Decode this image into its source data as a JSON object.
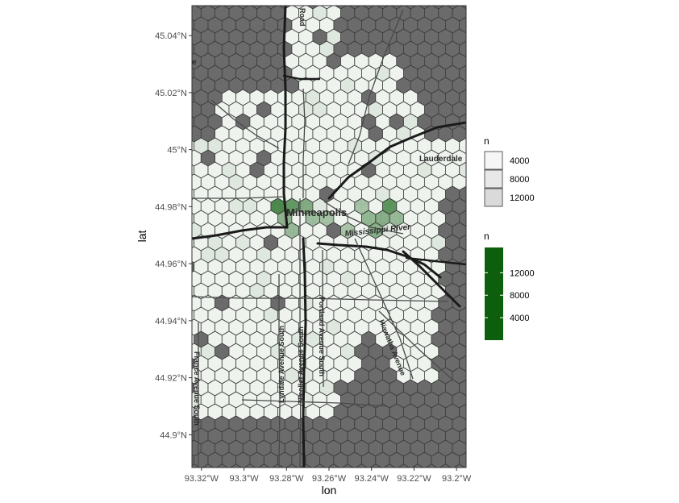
{
  "chart_data": {
    "type": "hexbin-map",
    "xlabel": "lon",
    "ylabel": "lat",
    "x_ticks": [
      "93.32°W",
      "93.3°W",
      "93.28°W",
      "93.26°W",
      "93.24°W",
      "93.22°W",
      "93.2°W"
    ],
    "x_tick_values": [
      -93.32,
      -93.3,
      -93.28,
      -93.26,
      -93.24,
      -93.22,
      -93.2
    ],
    "y_ticks": [
      "44.9°N",
      "44.92°N",
      "44.94°N",
      "44.96°N",
      "44.98°N",
      "45°N",
      "45.02°N",
      "45.04°N"
    ],
    "y_tick_values": [
      44.9,
      44.92,
      44.94,
      44.96,
      44.98,
      45.0,
      45.02,
      45.04
    ],
    "xlim": [
      -93.3245,
      -93.1955
    ],
    "ylim": [
      44.8885,
      45.0505
    ],
    "map_labels": {
      "city": "Minneapolis",
      "river": "Mississippi River",
      "suburb": "Lauderdale",
      "fragment_e": "e",
      "road_top": "Road",
      "road_france": "France Avenue South",
      "road_lyndale": "Lyndale Avenue South",
      "road_nicollet": "Nicollet Avenue South",
      "road_portland": "Portland Avenue South",
      "road_hiawatha": "Hiawatha Avenue"
    },
    "legend_alpha": {
      "title": "n",
      "entries": [
        {
          "label": "4000",
          "value": 4000
        },
        {
          "label": "8000",
          "value": 8000
        },
        {
          "label": "12000",
          "value": 12000
        }
      ]
    },
    "legend_fill": {
      "title": "n",
      "breaks": [
        {
          "label": "12000",
          "value": 12000
        },
        {
          "label": "8000",
          "value": 8000
        },
        {
          "label": "4000",
          "value": 4000
        }
      ],
      "range": [
        0,
        16500
      ],
      "color": "#0d5f0d"
    },
    "fill_color": "#0d5f0d",
    "empty_hex_color": "#6b6b6b",
    "hex_outline_color": "#3a3a3a",
    "hotspots": [
      {
        "lon": -93.281,
        "lat": 44.9785,
        "n": 16000
      },
      {
        "lon": -93.2835,
        "lat": 44.9815,
        "n": 11000
      },
      {
        "lon": -93.2785,
        "lat": 44.9805,
        "n": 9000
      },
      {
        "lon": -93.2735,
        "lat": 44.9795,
        "n": 6500
      },
      {
        "lon": -93.2835,
        "lat": 44.9745,
        "n": 5500
      },
      {
        "lon": -93.276,
        "lat": 44.9725,
        "n": 4500
      },
      {
        "lon": -93.266,
        "lat": 44.9765,
        "n": 4000
      },
      {
        "lon": -93.261,
        "lat": 44.9745,
        "n": 3500
      },
      {
        "lon": -93.2335,
        "lat": 44.9795,
        "n": 9500
      },
      {
        "lon": -93.236,
        "lat": 44.9735,
        "n": 6000
      },
      {
        "lon": -93.241,
        "lat": 44.9755,
        "n": 5000
      },
      {
        "lon": -93.2285,
        "lat": 44.9755,
        "n": 4500
      },
      {
        "lon": -93.246,
        "lat": 44.9805,
        "n": 3500
      },
      {
        "lon": -93.2535,
        "lat": 44.9725,
        "n": 3000
      }
    ]
  }
}
